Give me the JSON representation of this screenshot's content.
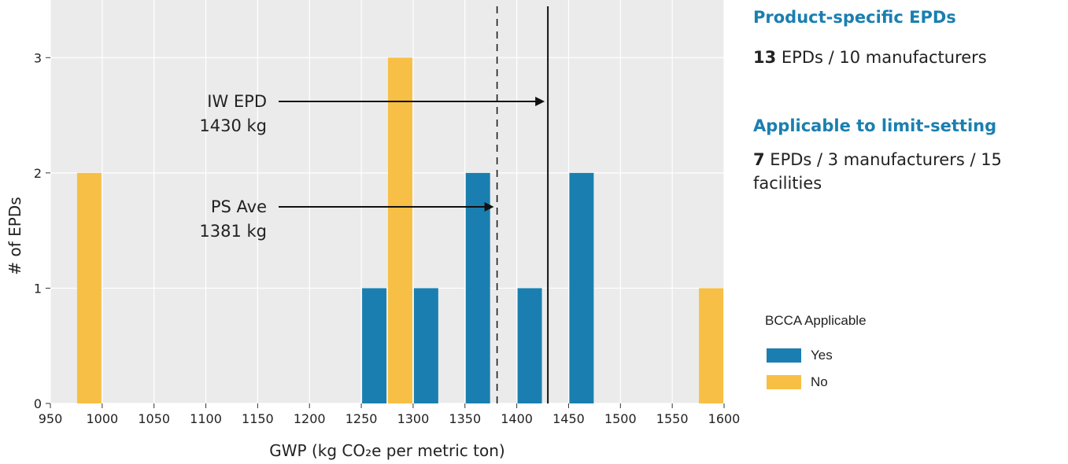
{
  "chart_data": {
    "type": "bar",
    "xlabel": "GWP (kg CO₂e per metric ton)",
    "ylabel": "# of EPDs",
    "xlim": [
      950,
      1600
    ],
    "ylim": [
      0,
      3.5
    ],
    "xticks": [
      950,
      1000,
      1050,
      1100,
      1150,
      1200,
      1250,
      1300,
      1350,
      1400,
      1450,
      1500,
      1550,
      1600
    ],
    "yticks": [
      0,
      1,
      2,
      3
    ],
    "bin_width": 25,
    "grid": true,
    "series": [
      {
        "name": "Yes",
        "color": "#1a7fb0",
        "bins": [
          {
            "x": 1262.5,
            "count": 1
          },
          {
            "x": 1312.5,
            "count": 1
          },
          {
            "x": 1362.5,
            "count": 2
          },
          {
            "x": 1412.5,
            "count": 1
          },
          {
            "x": 1462.5,
            "count": 2
          }
        ]
      },
      {
        "name": "No",
        "color": "#f7bf45",
        "bins": [
          {
            "x": 987.5,
            "count": 2
          },
          {
            "x": 1287.5,
            "count": 3
          },
          {
            "x": 1587.5,
            "count": 1
          }
        ]
      }
    ],
    "reference_lines": [
      {
        "label_line1": "IW EPD",
        "label_line2": "1430 kg",
        "value": 1430,
        "style": "solid"
      },
      {
        "label_line1": "PS Ave",
        "label_line2": "1381 kg",
        "value": 1381,
        "style": "dashed"
      }
    ]
  },
  "side": {
    "heading1": "Product-specific EPDs",
    "stat1_bold": "13",
    "stat1_text": " EPDs / 10 manufacturers",
    "heading2": "Applicable to limit-setting",
    "stat2_bold": "7",
    "stat2_line1": " EPDs / 3 manufacturers / 15",
    "stat2_line2": "facilities"
  },
  "legend": {
    "title": "BCCA Applicable",
    "items": [
      {
        "label": "Yes",
        "color": "#1a7fb0"
      },
      {
        "label": "No",
        "color": "#f7bf45"
      }
    ]
  }
}
